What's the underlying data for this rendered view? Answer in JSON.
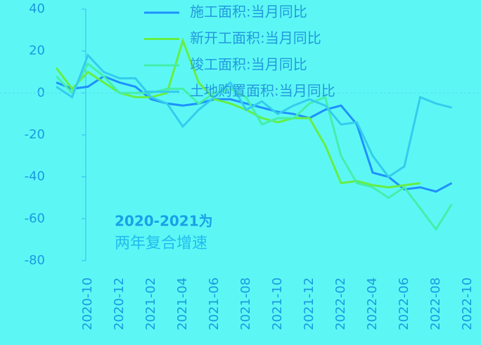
{
  "chart_data": {
    "type": "line",
    "annotation": [
      "2020-2021为",
      "两年复合增速"
    ],
    "categories": [
      null,
      null,
      "2020-10",
      null,
      "2020-12",
      null,
      "2021-02",
      null,
      "2021-04",
      null,
      "2021-06",
      null,
      "2021-08",
      null,
      "2021-10",
      null,
      "2021-12",
      null,
      "2022-02",
      null,
      "2022-04",
      null,
      "2022-06",
      null,
      "2022-08",
      null,
      "2022-10"
    ],
    "series": [
      {
        "name": "施工面积:当月同比",
        "color": "#1e90ff",
        "values": [
          5,
          2,
          3,
          8,
          5,
          3,
          -3,
          -5,
          -6,
          -5,
          -3,
          -3,
          -5,
          -7,
          -9,
          -10,
          -12,
          -8,
          -6,
          -15,
          -38,
          -40,
          -46,
          -45,
          -47,
          -43,
          null
        ]
      },
      {
        "name": "新开工面积:当月同比",
        "color": "#66ee44",
        "values": [
          12,
          2,
          10,
          5,
          0,
          -2,
          -2,
          0,
          25,
          5,
          -3,
          -5,
          -8,
          -12,
          -14,
          -12,
          -12,
          -25,
          -43,
          -42,
          -44,
          -45,
          -44,
          -43,
          null,
          null,
          null
        ]
      },
      {
        "name": "竣工面积:当月同比",
        "color": "#44eeaa",
        "values": [
          8,
          0,
          14,
          8,
          0,
          0,
          0,
          2,
          2,
          -5,
          0,
          2,
          -2,
          -15,
          -12,
          -12,
          -5,
          -2,
          -30,
          -43,
          -45,
          -50,
          -45,
          -55,
          -65,
          -53,
          null
        ]
      },
      {
        "name": "土地购置面积:当月同比",
        "color": "#33ccee",
        "values": [
          3,
          -2,
          18,
          10,
          7,
          7,
          -2,
          -5,
          -16,
          -8,
          -2,
          5,
          -8,
          -4,
          -10,
          -6,
          -3,
          -6,
          -15,
          -14,
          -30,
          -40,
          -35,
          -2,
          -5,
          -7,
          null
        ]
      }
    ],
    "ylim": [
      -80,
      40
    ],
    "yticks": [
      -80,
      -60,
      -40,
      -20,
      0,
      20,
      40
    ]
  }
}
